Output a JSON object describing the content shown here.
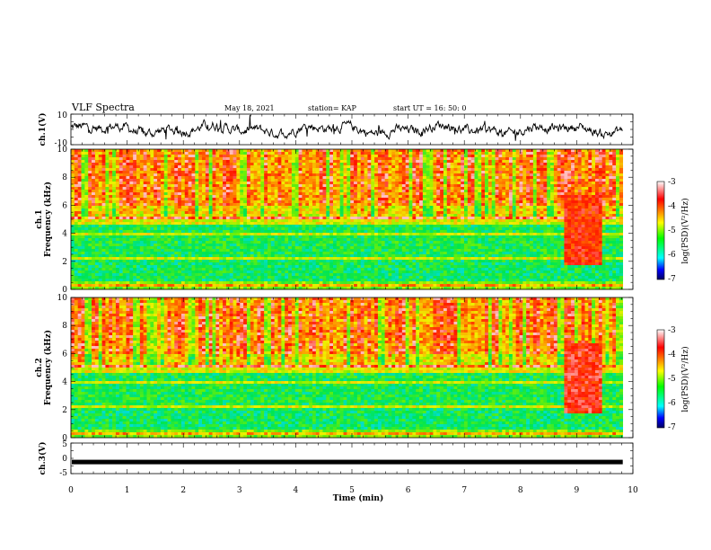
{
  "header": {
    "title": "VLF Spectra",
    "date": "May 18, 2021",
    "station": "station= KAP",
    "start": "start  UT  =   16: 50: 0"
  },
  "chart_data": [
    {
      "type": "line",
      "ylabel": "ch.1(V)",
      "ylim": [
        -10,
        10
      ],
      "yticks": [
        "10",
        "-10"
      ],
      "xlim": [
        0,
        10
      ],
      "description_values": "waveform amplitude roughly between -8 and 8 V over 0-9.8 min"
    },
    {
      "type": "heatmap",
      "ylabel_channel": "ch.1",
      "ylabel": "Frequency  (kHz)",
      "ylim": [
        0,
        10
      ],
      "yticks": [
        "0",
        "2",
        "4",
        "6",
        "8",
        "10"
      ],
      "xlim": [
        0,
        9.85
      ],
      "colorbar": {
        "label": "log(PSD)(V²/Hz)",
        "range": [
          -7,
          -3
        ],
        "ticks": [
          "-3",
          "-4",
          "-5",
          "-6",
          "-7"
        ]
      }
    },
    {
      "type": "heatmap",
      "ylabel_channel": "ch.2",
      "ylabel": "Frequency  (kHz)",
      "ylim": [
        0,
        10
      ],
      "yticks": [
        "0",
        "2",
        "4",
        "6",
        "8",
        "10"
      ],
      "xlim": [
        0,
        9.85
      ],
      "colorbar": {
        "label": "log(PSD)(V²/Hz)",
        "range": [
          -7,
          -3
        ],
        "ticks": [
          "-3",
          "-4",
          "-5",
          "-6",
          "-7"
        ]
      }
    },
    {
      "type": "line",
      "ylabel": "ch.3(V)",
      "ylim": [
        -5,
        5
      ],
      "yticks": [
        "5",
        "0",
        "-5"
      ],
      "xlim": [
        0,
        10
      ],
      "level": -1.2
    }
  ],
  "xaxis": {
    "label": "Time  (min)",
    "ticks": [
      "0",
      "1",
      "2",
      "3",
      "4",
      "5",
      "6",
      "7",
      "8",
      "9",
      "10"
    ]
  },
  "colors": {
    "low": "#000080",
    "mid": "#00e000",
    "high": "#ff0000"
  }
}
